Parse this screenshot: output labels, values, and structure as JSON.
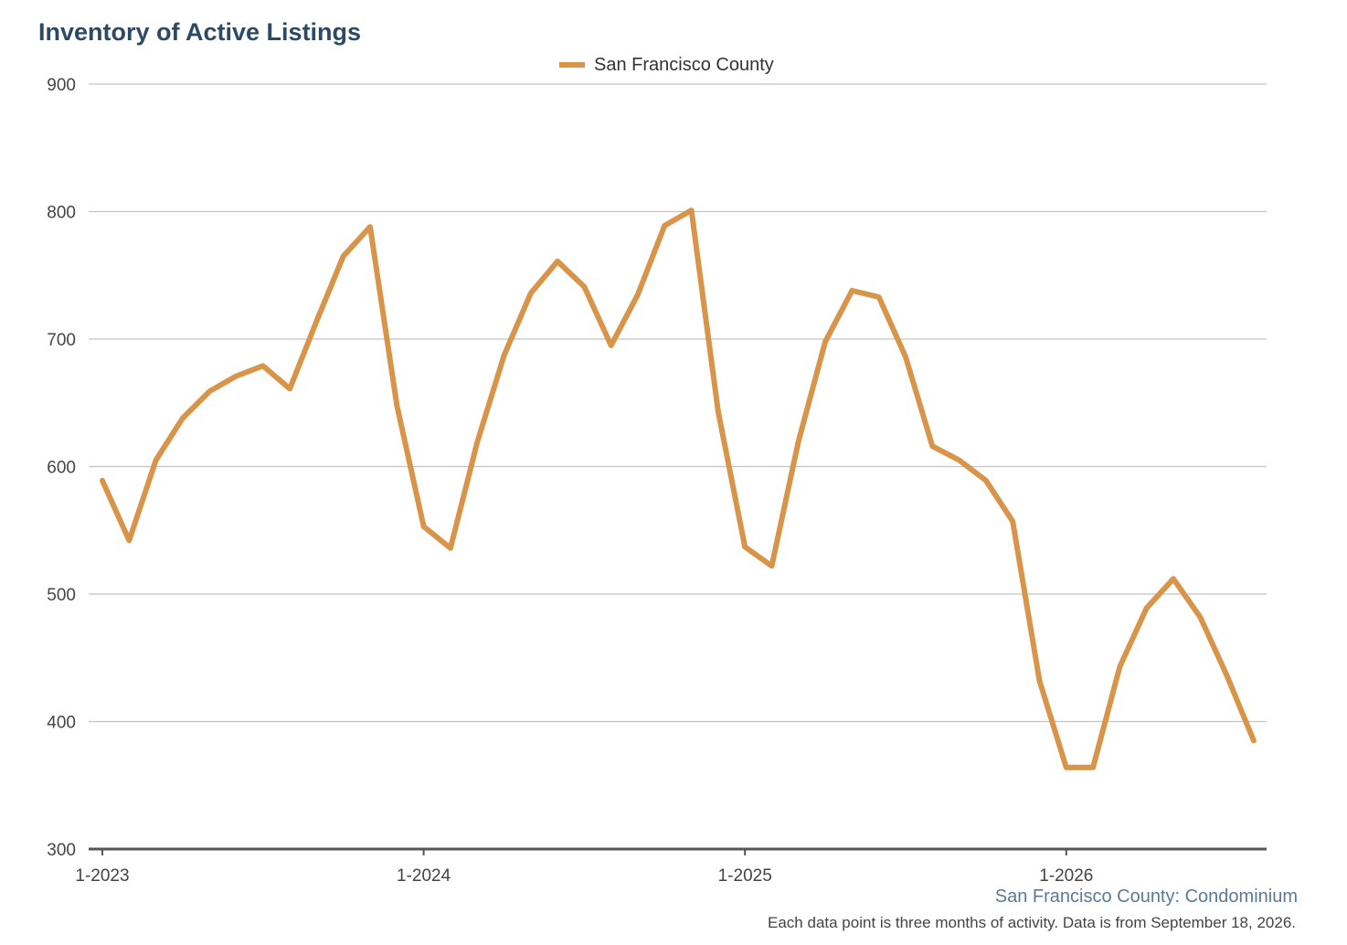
{
  "chart_data": {
    "type": "line",
    "title": "Inventory of Active Listings",
    "xlabel": "",
    "ylabel": "",
    "ylim": [
      300,
      900
    ],
    "yticks": [
      300,
      400,
      500,
      600,
      700,
      800,
      900
    ],
    "x_tick_labels": [
      "1-2023",
      "1-2024",
      "1-2025",
      "1-2026"
    ],
    "x_tick_months": [
      0,
      12,
      24,
      36
    ],
    "x_range_months": [
      0,
      43
    ],
    "grid": true,
    "legend_position": "top-center",
    "colors": {
      "line": "#d8954a",
      "grid": "#c4c4c4",
      "axis": "#555555"
    },
    "series": [
      {
        "name": "San Francisco County",
        "x_months": [
          0,
          1,
          2,
          3,
          4,
          5,
          6,
          7,
          8,
          9,
          10,
          11,
          12,
          13,
          14,
          15,
          16,
          17,
          18,
          19,
          20,
          21,
          22,
          23,
          24,
          25,
          26,
          27,
          28,
          29,
          30,
          31,
          32,
          33,
          34,
          35,
          36,
          37,
          38,
          39,
          40,
          41,
          42,
          43
        ],
        "values": [
          589,
          542,
          605,
          638,
          659,
          671,
          679,
          661,
          714,
          765,
          788,
          648,
          553,
          536,
          619,
          687,
          736,
          761,
          741,
          695,
          735,
          789,
          801,
          643,
          537,
          522,
          620,
          698,
          738,
          733,
          686,
          616,
          605,
          589,
          557,
          432,
          364,
          364,
          443,
          489,
          512,
          482,
          436,
          385
        ]
      }
    ]
  },
  "subtitle": "San Francisco County: Condominium",
  "footnote": "Each data point is three months of activity. Data is from September 18, 2026."
}
